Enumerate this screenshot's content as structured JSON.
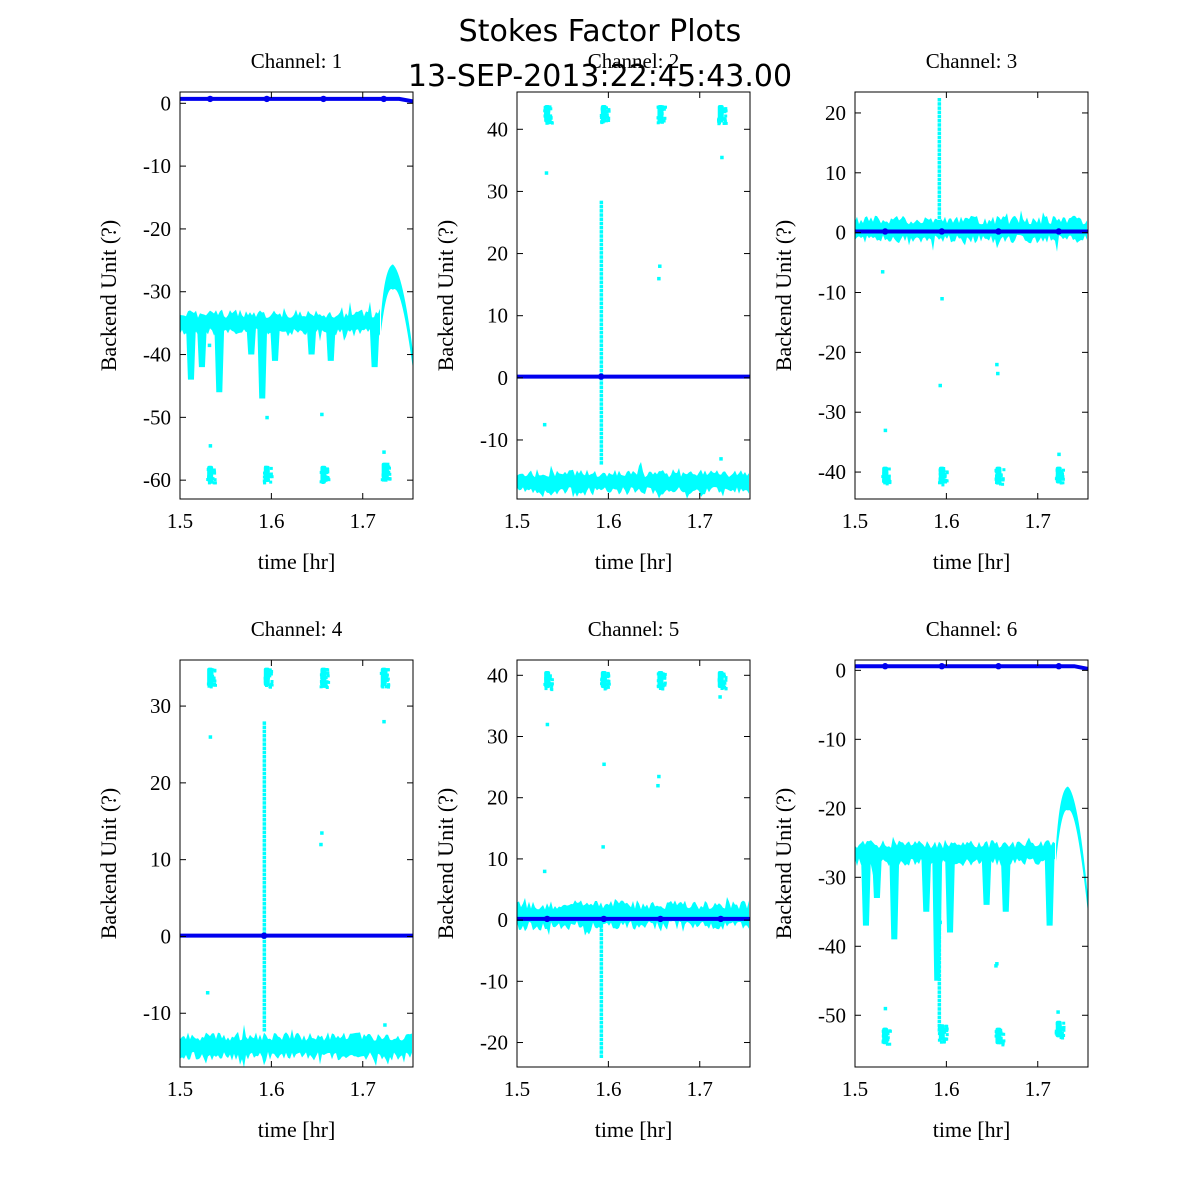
{
  "figure": {
    "title_line1": "Stokes Factor Plots",
    "title_line2": "13-SEP-2013:22:45:43.00"
  },
  "colors": {
    "raw": "#00ffff",
    "smooth": "#0000ee",
    "axes": "#000000"
  },
  "chart_data": [
    {
      "type": "scatter",
      "title": "Channel: 1",
      "xlabel": "time [hr]",
      "ylabel": "Backend Unit (?)",
      "xlim": [
        1.5,
        1.755
      ],
      "ylim": [
        -63,
        1.8
      ],
      "xticks": [
        1.5,
        1.6,
        1.7
      ],
      "xticklabels": [
        "1.5",
        "1.6",
        "1.7"
      ],
      "yticks": [
        0,
        -10,
        -20,
        -30,
        -40,
        -50,
        -60
      ],
      "yticklabels": [
        "0",
        "-10",
        "-20",
        "-30",
        "-40",
        "-50",
        "-60"
      ],
      "series": [
        {
          "name": "raw",
          "kind": "band",
          "baseline": -35,
          "halfwidth": 1.5,
          "segments": [
            [
              1.5,
              1.721
            ]
          ],
          "dips": [
            [
              1.512,
              -44
            ],
            [
              1.524,
              -42
            ],
            [
              1.543,
              -46
            ],
            [
              1.578,
              -40
            ],
            [
              1.59,
              -47
            ],
            [
              1.604,
              -41
            ],
            [
              1.644,
              -40
            ],
            [
              1.665,
              -41
            ],
            [
              1.713,
              -42
            ]
          ],
          "bump": {
            "x0": 1.72,
            "peak_x": 1.733,
            "x1": 1.755,
            "peak": -27,
            "end": -41
          },
          "clusters": [
            [
              1.533,
              -59,
              1.3
            ],
            [
              1.595,
              -59,
              1.3
            ],
            [
              1.657,
              -59,
              1.3
            ],
            [
              1.724,
              -58.5,
              1.3
            ]
          ],
          "spikes": [],
          "outliers": [
            [
              1.533,
              -54.5
            ],
            [
              1.595,
              -50
            ],
            [
              1.655,
              -49.5
            ],
            [
              1.723,
              -55.5
            ],
            [
              1.532,
              -38.5
            ],
            [
              1.591,
              -38.2
            ]
          ]
        },
        {
          "name": "smooth",
          "kind": "line",
          "level": 0.7,
          "end_level": 0.3,
          "markers": [
            1.533,
            1.595,
            1.657,
            1.723
          ]
        }
      ]
    },
    {
      "type": "scatter",
      "title": "Channel: 2",
      "xlabel": "time [hr]",
      "ylabel": "Backend Unit (?)",
      "xlim": [
        1.5,
        1.755
      ],
      "ylim": [
        -19.5,
        46
      ],
      "xticks": [
        1.5,
        1.6,
        1.7
      ],
      "xticklabels": [
        "1.5",
        "1.6",
        "1.7"
      ],
      "yticks": [
        40,
        30,
        20,
        10,
        0,
        -10
      ],
      "yticklabels": [
        "40",
        "30",
        "20",
        "10",
        "0",
        "-10"
      ],
      "series": [
        {
          "name": "raw",
          "kind": "band",
          "baseline": -16.8,
          "halfwidth": 1.4,
          "segments": [
            [
              1.5,
              1.755
            ]
          ],
          "dips": [],
          "bump": null,
          "clusters": [
            [
              1.533,
              42.5,
              1.4
            ],
            [
              1.595,
              42.5,
              1.4
            ],
            [
              1.657,
              42.5,
              1.4
            ],
            [
              1.723,
              42.5,
              1.4
            ]
          ],
          "spikes": [
            [
              1.592,
              -14,
              28.5
            ]
          ],
          "outliers": [
            [
              1.532,
              33
            ],
            [
              1.53,
              -7.5
            ],
            [
              1.656,
              18
            ],
            [
              1.655,
              16
            ],
            [
              1.724,
              35.5
            ],
            [
              1.723,
              -13
            ]
          ]
        },
        {
          "name": "smooth",
          "kind": "line",
          "level": 0.2,
          "end_level": 0.2,
          "markers": [
            1.592
          ]
        }
      ]
    },
    {
      "type": "scatter",
      "title": "Channel: 3",
      "xlabel": "time [hr]",
      "ylabel": "Backend Unit (?)",
      "xlim": [
        1.5,
        1.755
      ],
      "ylim": [
        -44.5,
        23.5
      ],
      "xticks": [
        1.5,
        1.6,
        1.7
      ],
      "xticklabels": [
        "1.5",
        "1.6",
        "1.7"
      ],
      "yticks": [
        20,
        10,
        0,
        -10,
        -20,
        -30,
        -40
      ],
      "yticklabels": [
        "20",
        "10",
        "0",
        "-10",
        "-20",
        "-30",
        "-40"
      ],
      "series": [
        {
          "name": "raw",
          "kind": "band",
          "baseline": 0.5,
          "halfwidth": 1.6,
          "segments": [
            [
              1.5,
              1.755
            ]
          ],
          "dips": [],
          "bump": null,
          "clusters": [
            [
              1.533,
              -40.5,
              1.4
            ],
            [
              1.595,
              -40.5,
              1.4
            ],
            [
              1.657,
              -40.5,
              1.4
            ],
            [
              1.723,
              -40.5,
              1.4
            ]
          ],
          "spikes": [
            [
              1.592,
              2,
              22.5
            ]
          ],
          "outliers": [
            [
              1.53,
              -6.5
            ],
            [
              1.533,
              -33
            ],
            [
              1.595,
              -11
            ],
            [
              1.593,
              -25.5
            ],
            [
              1.655,
              -22
            ],
            [
              1.656,
              -23.5
            ],
            [
              1.723,
              -37
            ]
          ]
        },
        {
          "name": "smooth",
          "kind": "line",
          "level": 0.2,
          "end_level": 0.2,
          "markers": [
            1.533,
            1.595,
            1.657,
            1.723
          ]
        }
      ]
    },
    {
      "type": "scatter",
      "title": "Channel: 4",
      "xlabel": "time [hr]",
      "ylabel": "Backend Unit (?)",
      "xlim": [
        1.5,
        1.755
      ],
      "ylim": [
        -17,
        36
      ],
      "xticks": [
        1.5,
        1.6,
        1.7
      ],
      "xticklabels": [
        "1.5",
        "1.6",
        "1.7"
      ],
      "yticks": [
        30,
        20,
        10,
        0,
        -10
      ],
      "yticklabels": [
        "30",
        "20",
        "10",
        "0",
        "-10"
      ],
      "series": [
        {
          "name": "raw",
          "kind": "band",
          "baseline": -14.3,
          "halfwidth": 1.3,
          "segments": [
            [
              1.5,
              1.755
            ]
          ],
          "dips": [],
          "bump": null,
          "clusters": [
            [
              1.533,
              33.8,
              1.2
            ],
            [
              1.595,
              33.8,
              1.2
            ],
            [
              1.657,
              33.8,
              1.2
            ],
            [
              1.723,
              33.8,
              1.2
            ]
          ],
          "spikes": [
            [
              1.592,
              -12,
              28
            ]
          ],
          "outliers": [
            [
              1.533,
              26
            ],
            [
              1.53,
              -7.3
            ],
            [
              1.655,
              13.5
            ],
            [
              1.654,
              12
            ],
            [
              1.723,
              28
            ],
            [
              1.724,
              -11.5
            ]
          ]
        },
        {
          "name": "smooth",
          "kind": "line",
          "level": 0.1,
          "end_level": 0.1,
          "markers": [
            1.592
          ]
        }
      ]
    },
    {
      "type": "scatter",
      "title": "Channel: 5",
      "xlabel": "time [hr]",
      "ylabel": "Backend Unit (?)",
      "xlim": [
        1.5,
        1.755
      ],
      "ylim": [
        -24,
        42.5
      ],
      "xticks": [
        1.5,
        1.6,
        1.7
      ],
      "xticklabels": [
        "1.5",
        "1.6",
        "1.7"
      ],
      "yticks": [
        40,
        30,
        20,
        10,
        0,
        -10,
        -20
      ],
      "yticklabels": [
        "40",
        "30",
        "20",
        "10",
        "0",
        "-10",
        "-20"
      ],
      "series": [
        {
          "name": "raw",
          "kind": "band",
          "baseline": 0.8,
          "halfwidth": 1.7,
          "segments": [
            [
              1.5,
              1.755
            ]
          ],
          "dips": [],
          "bump": null,
          "clusters": [
            [
              1.533,
              39.3,
              1.4
            ],
            [
              1.595,
              39.3,
              1.4
            ],
            [
              1.657,
              39.3,
              1.4
            ],
            [
              1.723,
              39.3,
              1.4
            ]
          ],
          "spikes": [
            [
              1.592,
              -22.5,
              0
            ]
          ],
          "outliers": [
            [
              1.533,
              32
            ],
            [
              1.53,
              8
            ],
            [
              1.595,
              25.5
            ],
            [
              1.594,
              12
            ],
            [
              1.655,
              23.5
            ],
            [
              1.654,
              22
            ],
            [
              1.722,
              36.5
            ]
          ]
        },
        {
          "name": "smooth",
          "kind": "line",
          "level": 0.2,
          "end_level": 0.2,
          "markers": [
            1.533,
            1.595,
            1.657,
            1.723
          ]
        }
      ]
    },
    {
      "type": "scatter",
      "title": "Channel: 6",
      "xlabel": "time [hr]",
      "ylabel": "Backend Unit (?)",
      "xlim": [
        1.5,
        1.755
      ],
      "ylim": [
        -57.5,
        1.5
      ],
      "xticks": [
        1.5,
        1.6,
        1.7
      ],
      "xticklabels": [
        "1.5",
        "1.6",
        "1.7"
      ],
      "yticks": [
        0,
        -10,
        -20,
        -30,
        -40,
        -50
      ],
      "yticklabels": [
        "0",
        "-10",
        "-20",
        "-30",
        "-40",
        "-50"
      ],
      "series": [
        {
          "name": "raw",
          "kind": "band",
          "baseline": -26.5,
          "halfwidth": 1.3,
          "segments": [
            [
              1.5,
              1.721
            ]
          ],
          "dips": [
            [
              1.512,
              -37
            ],
            [
              1.524,
              -33
            ],
            [
              1.543,
              -39
            ],
            [
              1.578,
              -35
            ],
            [
              1.59,
              -45
            ],
            [
              1.604,
              -38
            ],
            [
              1.644,
              -34
            ],
            [
              1.665,
              -35
            ],
            [
              1.713,
              -37
            ]
          ],
          "bump": {
            "x0": 1.72,
            "peak_x": 1.733,
            "x1": 1.755,
            "peak": -18,
            "end": -34
          },
          "clusters": [
            [
              1.533,
              -53,
              1.2
            ],
            [
              1.595,
              -52.5,
              1.2
            ],
            [
              1.657,
              -53,
              1.2
            ],
            [
              1.723,
              -52,
              1.2
            ]
          ],
          "spikes": [
            [
              1.592,
              -52,
              -33
            ]
          ],
          "outliers": [
            [
              1.533,
              -49
            ],
            [
              1.655,
              -42.5
            ],
            [
              1.654,
              -42.8
            ],
            [
              1.722,
              -49.5
            ],
            [
              1.593,
              -36.5
            ]
          ]
        },
        {
          "name": "smooth",
          "kind": "line",
          "level": 0.6,
          "end_level": 0.2,
          "markers": [
            1.533,
            1.595,
            1.657,
            1.723
          ]
        }
      ]
    }
  ]
}
